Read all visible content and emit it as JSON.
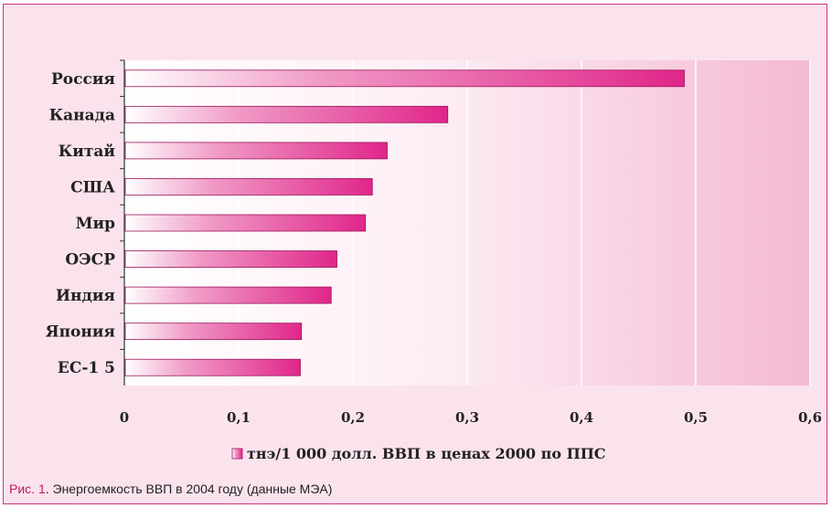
{
  "chart_data": {
    "type": "bar",
    "orientation": "horizontal",
    "categories": [
      "Россия",
      "Канада",
      "Китай",
      "США",
      "Мир",
      "ОЭСР",
      "Индия",
      "Япония",
      "ЕС-1 5"
    ],
    "series": [
      {
        "name": "тнэ/1 000 долл. ВВП в ценах 2000 по ППС",
        "values": [
          0.49,
          0.283,
          0.23,
          0.217,
          0.211,
          0.186,
          0.181,
          0.155,
          0.154
        ]
      }
    ],
    "xlim": [
      0,
      0.6
    ],
    "x_ticks": [
      "0",
      "0,1",
      "0,2",
      "0,3",
      "0,4",
      "0,5",
      "0,6"
    ],
    "grid": true,
    "legend_position": "bottom",
    "colors": {
      "bar": "#e0268a",
      "bar_light": "#ffffff",
      "frame": "#d0337e",
      "plot_bg": "#f7c2d9"
    }
  },
  "caption": {
    "figure_label": "Рис. 1",
    "text": ". Энергоемкость ВВП в 2004 году (данные МЭА)"
  }
}
